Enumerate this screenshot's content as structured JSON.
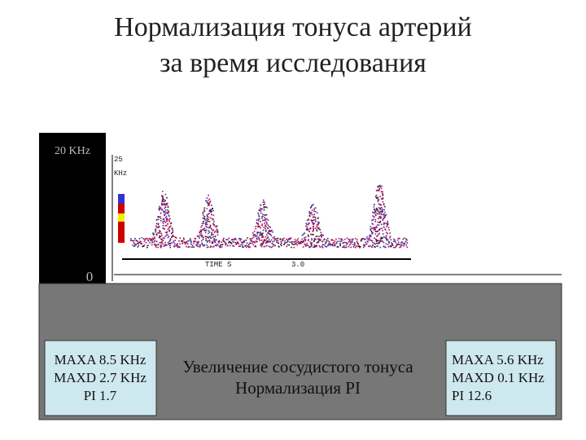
{
  "header": {
    "title_lines": [
      "Нормализация тонуса артерий",
      "за время исследования"
    ]
  },
  "doppler": {
    "top_label": "20 KHz",
    "bottom_label": "0",
    "scale_top": "25",
    "scale_unit": "KHz",
    "time_label": "TIME S",
    "time_value": "3.0"
  },
  "left_box": {
    "lines": [
      "MAXA 8.5 KHz",
      "MAXD 2.7 KHz",
      "PI 1.7"
    ]
  },
  "center": {
    "lines": [
      "Увеличение сосудистого тонуса",
      "Нормализация PI"
    ]
  },
  "right_box": {
    "lines": [
      "MAXA 5.6 KHz",
      "MAXD 0.1 KHz",
      "PI 12.6"
    ]
  }
}
